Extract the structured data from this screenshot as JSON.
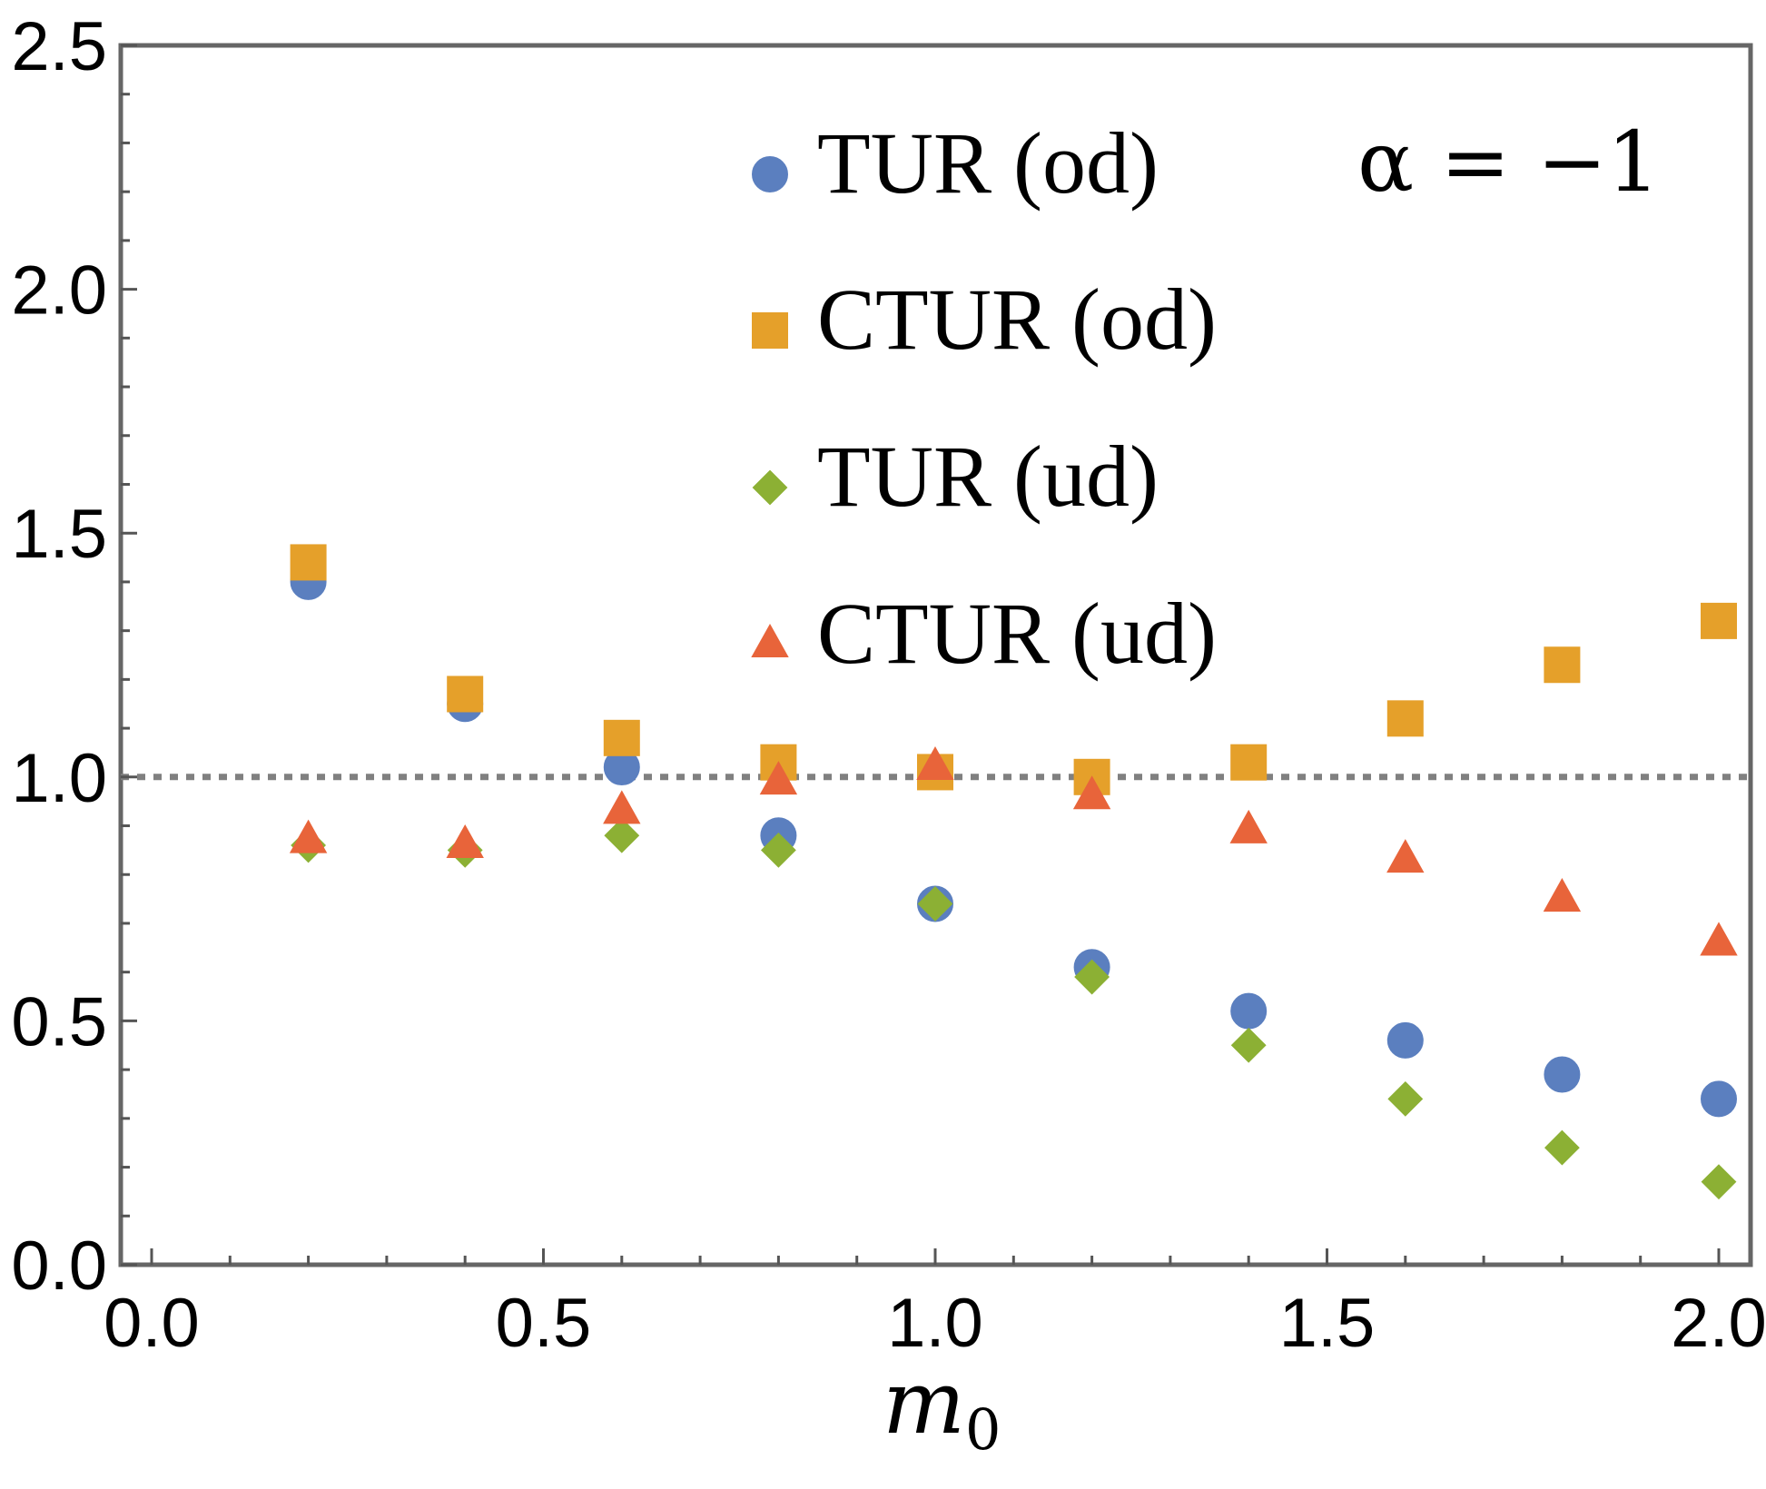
{
  "chart_data": {
    "type": "scatter",
    "x": [
      0.2,
      0.4,
      0.6,
      0.8,
      1.0,
      1.2,
      1.4,
      1.6,
      1.8,
      2.0
    ],
    "series": [
      {
        "name": "TUR (od)",
        "marker": "circle",
        "color": "#5B7FBF",
        "values": [
          1.4,
          1.15,
          1.02,
          0.88,
          0.74,
          0.61,
          0.52,
          0.46,
          0.39,
          0.34
        ]
      },
      {
        "name": "CTUR (od)",
        "marker": "square",
        "color": "#E5A02A",
        "values": [
          1.44,
          1.17,
          1.08,
          1.03,
          1.01,
          1.0,
          1.03,
          1.12,
          1.23,
          1.32
        ]
      },
      {
        "name": "TUR (ud)",
        "marker": "diamond",
        "color": "#8CB034",
        "values": [
          0.86,
          0.85,
          0.88,
          0.85,
          0.74,
          0.59,
          0.45,
          0.34,
          0.24,
          0.17
        ]
      },
      {
        "name": "CTUR (ud)",
        "marker": "triangle",
        "color": "#E8643A",
        "values": [
          0.87,
          0.86,
          0.93,
          0.99,
          1.02,
          0.96,
          0.89,
          0.83,
          0.75,
          0.66
        ]
      }
    ],
    "reference_line": {
      "y": 1.0,
      "style": "dotted",
      "color": "#808080"
    },
    "xlim": [
      0.0,
      2.0
    ],
    "ylim": [
      0.0,
      2.5
    ],
    "xticks": [
      "0.0",
      "0.5",
      "1.0",
      "1.5",
      "2.0"
    ],
    "yticks": [
      "0.0",
      "0.5",
      "1.0",
      "1.5",
      "2.0",
      "2.5"
    ],
    "xlabel": {
      "main": "m",
      "sub": "0"
    },
    "ylabel": "",
    "annotation": "α = −1",
    "legend_position": "top-right",
    "grid": false
  }
}
